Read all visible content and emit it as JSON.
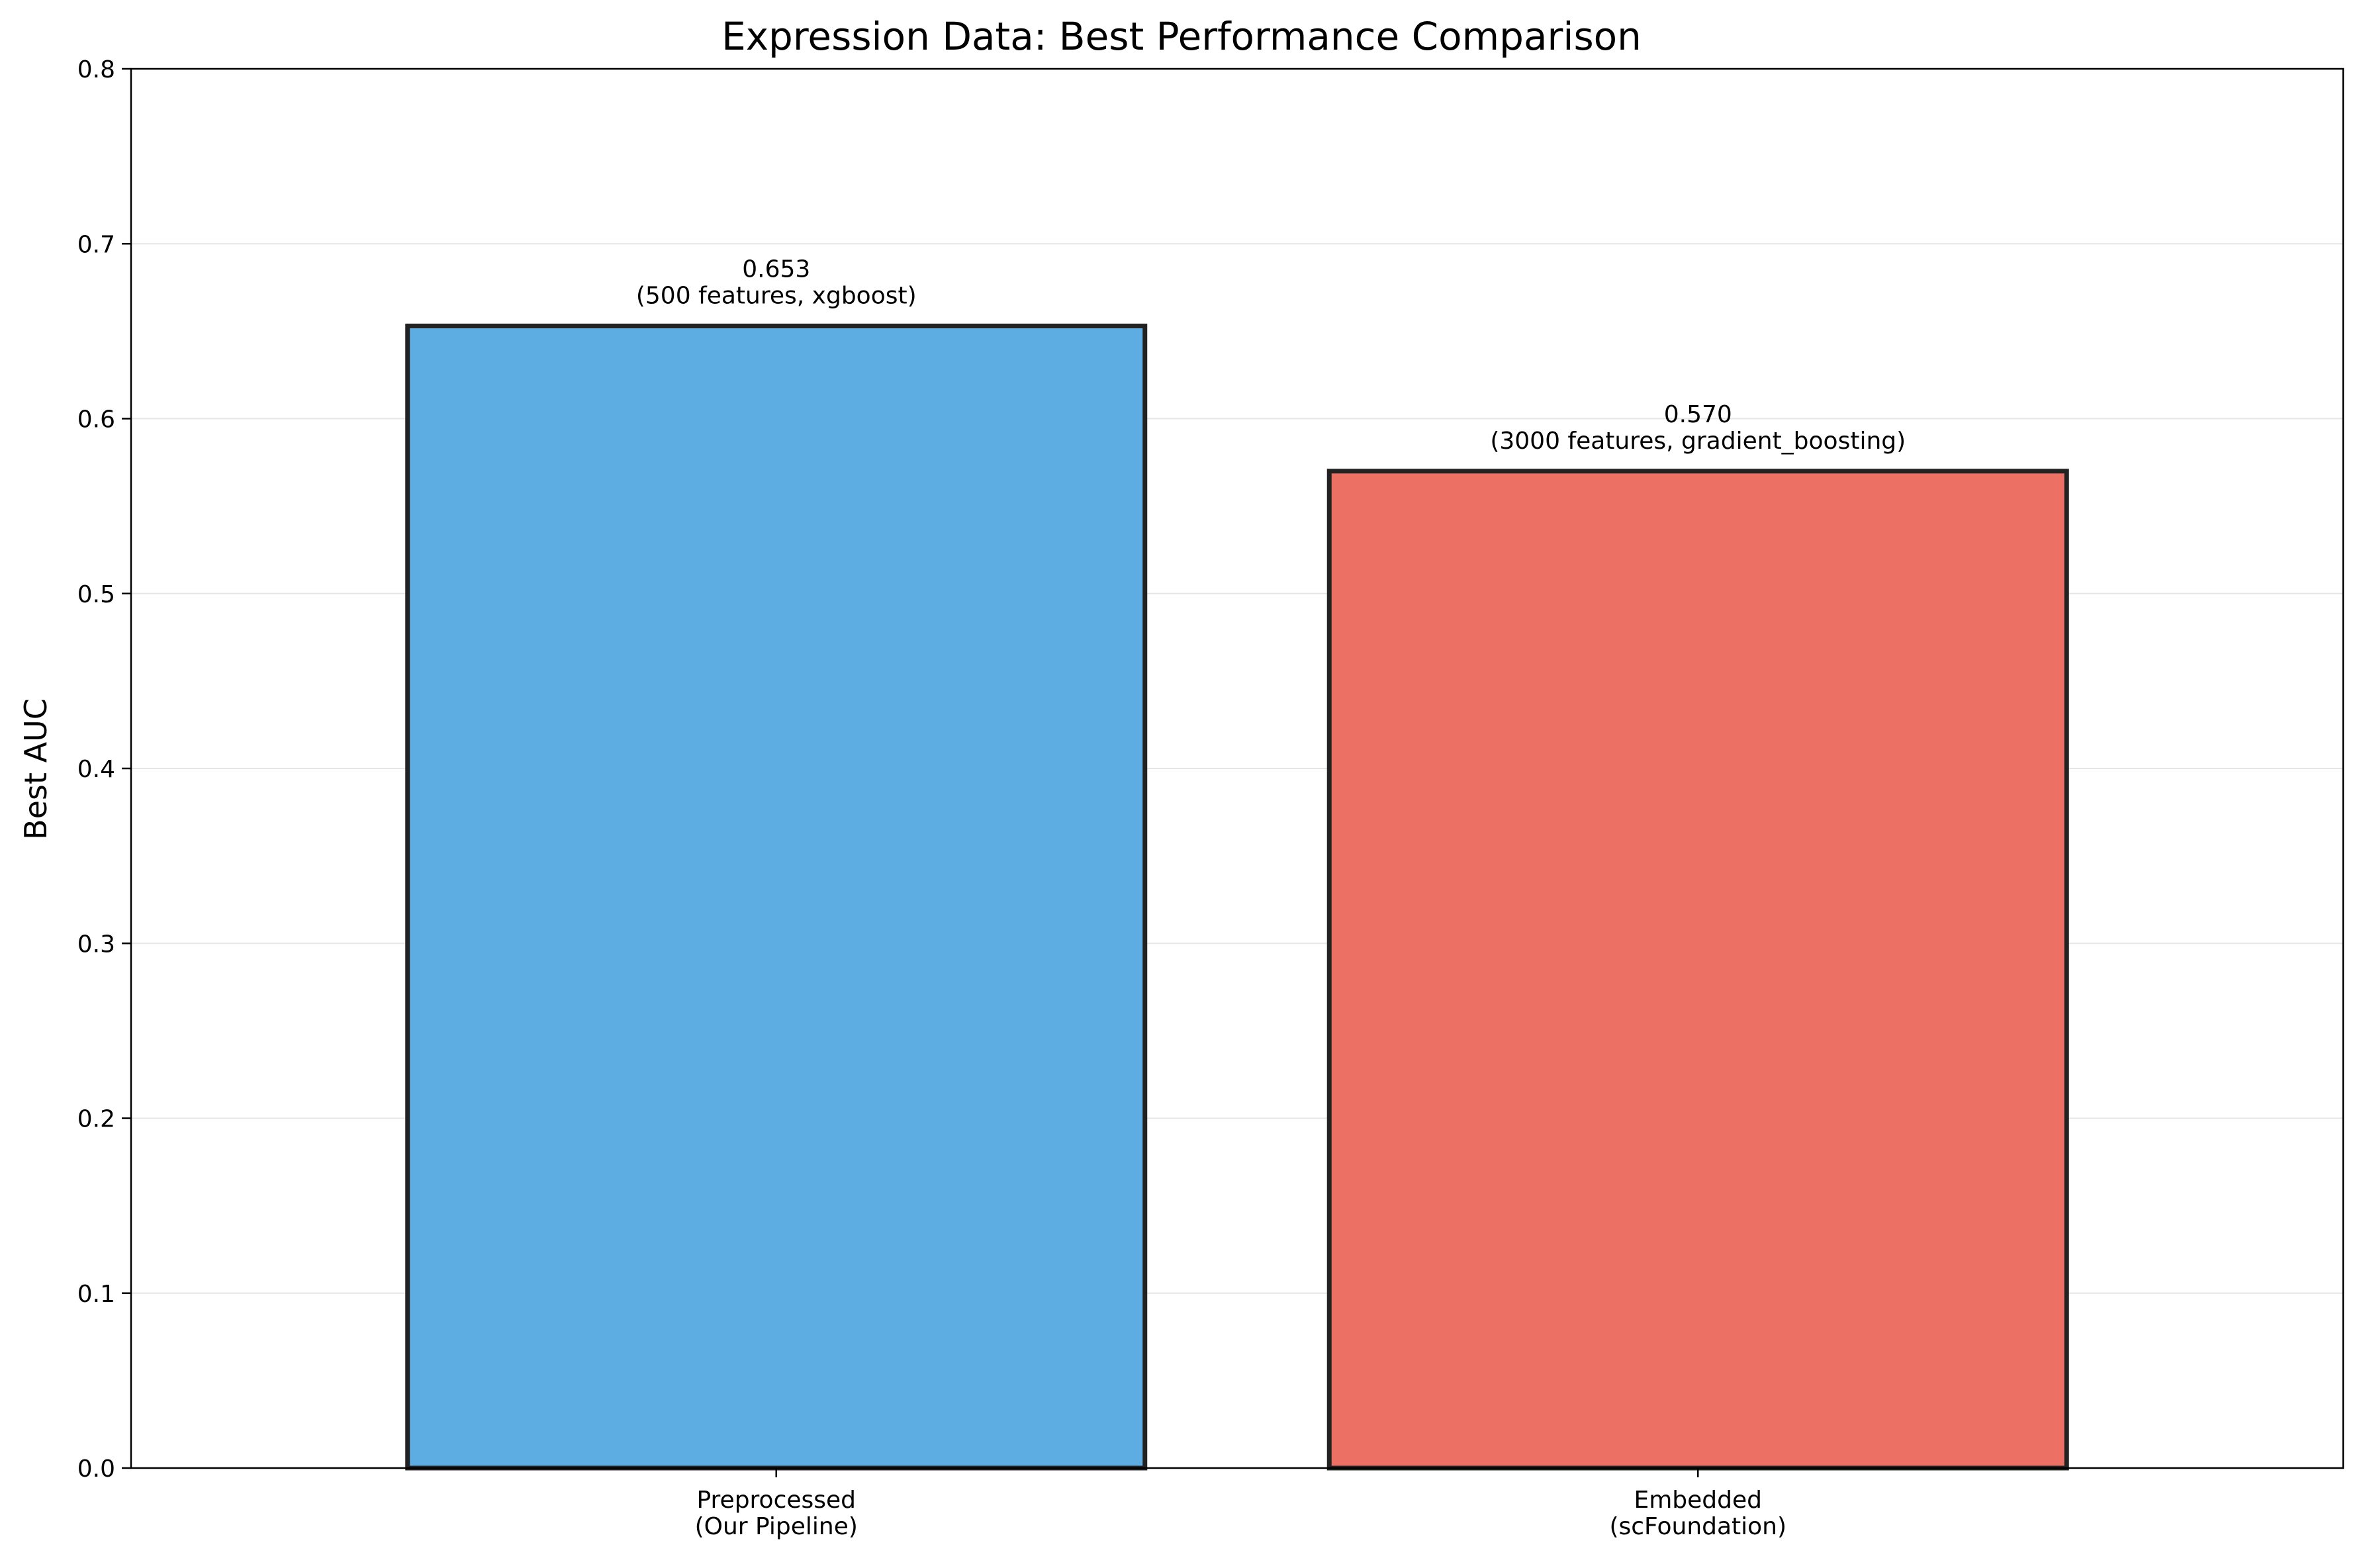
{
  "chart_data": {
    "type": "bar",
    "title": "Expression Data: Best Performance Comparison",
    "xlabel": "",
    "ylabel": "Best AUC",
    "ylim": [
      0,
      0.8
    ],
    "yticks": [
      "0.0",
      "0.1",
      "0.2",
      "0.3",
      "0.4",
      "0.5",
      "0.6",
      "0.7",
      "0.8"
    ],
    "grid": "horizontal",
    "categories": [
      [
        "Preprocessed",
        "(Our Pipeline)"
      ],
      [
        "Embedded",
        "(scFoundation)"
      ]
    ],
    "values": [
      0.653,
      0.57
    ],
    "value_labels": [
      "0.653",
      "0.570"
    ],
    "annotations": [
      "(500 features, xgboost)",
      "(3000 features, gradient_boosting)"
    ],
    "colors": [
      "#5DADE2",
      "#EC7063"
    ],
    "edge_color": "#222222"
  }
}
